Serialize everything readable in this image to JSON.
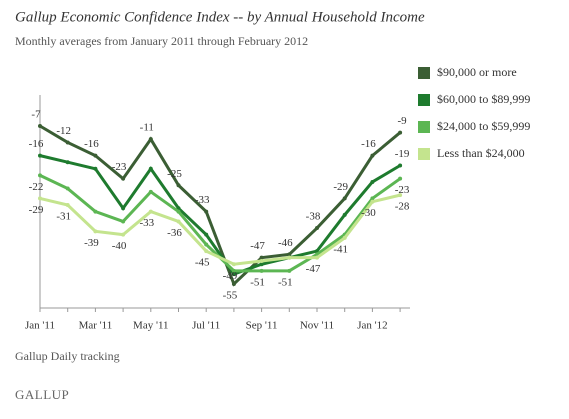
{
  "chart_data": {
    "type": "line",
    "title": "Gallup Economic Confidence Index -- by Annual Household Income",
    "subtitle": "Monthly averages from January 2011 through February 2012",
    "categories": [
      "Jan '11",
      null,
      "Mar '11",
      null,
      "May '11",
      null,
      "Jul '11",
      null,
      "Sep '11",
      null,
      "Nov '11",
      null,
      "Jan '12",
      null
    ],
    "series": [
      {
        "name": "$90,000 or more",
        "color": "#3b5e34",
        "values": [
          -7,
          -12,
          -16,
          -23,
          -11,
          -25,
          -33,
          -55,
          -47,
          -46,
          -38,
          -29,
          -16,
          -9
        ],
        "value_labels": [
          "-7",
          "-12",
          "-16",
          "-23",
          "-11",
          "-25",
          "-33",
          "-55",
          "-47",
          "-46",
          "-38",
          "-29",
          "-16",
          "-9"
        ]
      },
      {
        "name": "$60,000 to $89,999",
        "color": "#1e7b2e",
        "values": [
          -16,
          -18,
          -20,
          -32,
          -20,
          -32,
          -40,
          -52,
          -49,
          -47,
          -45,
          -34,
          -24,
          -19
        ],
        "value_labels": [
          "-16",
          null,
          null,
          null,
          null,
          null,
          null,
          null,
          null,
          null,
          null,
          null,
          null,
          "-19"
        ]
      },
      {
        "name": "$24,000 to $59,999",
        "color": "#5cb653",
        "values": [
          -22,
          -26,
          -33,
          -36,
          -27,
          -33,
          -43,
          -51,
          -51,
          -51,
          -46,
          -40,
          -29,
          -23
        ],
        "value_labels": [
          "-22",
          null,
          null,
          null,
          null,
          null,
          null,
          null,
          "-51",
          "-51",
          null,
          null,
          null,
          "-23"
        ]
      },
      {
        "name": "Less than $24,000",
        "color": "#c4e48e",
        "values": [
          -29,
          -31,
          -39,
          -40,
          -33,
          -36,
          -45,
          -49,
          -48,
          -47,
          -47,
          -41,
          -30,
          -28
        ],
        "value_labels": [
          "-29",
          "-31",
          "-39",
          "-40",
          "-33",
          "-36",
          "-45",
          "-49",
          null,
          null,
          "-47",
          "-41",
          "-30",
          "-28"
        ]
      }
    ],
    "source": "Gallup Daily tracking",
    "logo": "GALLUP"
  }
}
